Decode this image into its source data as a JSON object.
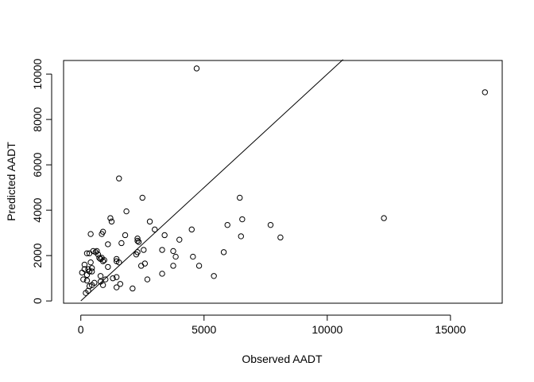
{
  "chart_data": {
    "type": "scatter",
    "title": "",
    "xlabel": "Observed AADT",
    "ylabel": "Predicted AADT",
    "xlim": [
      -700,
      17100
    ],
    "ylim": [
      -100,
      10600
    ],
    "x_ticks": [
      0,
      5000,
      10000,
      15000
    ],
    "y_ticks": [
      0,
      2000,
      4000,
      6000,
      8000,
      10000
    ],
    "x_tick_labels": [
      "0",
      "5000",
      "10000",
      "15000"
    ],
    "y_tick_labels": [
      "0",
      "2000",
      "4000",
      "6000",
      "8000",
      "10000"
    ],
    "grid": false,
    "legend": "none",
    "marker": "open-circle",
    "reference_line": {
      "type": "y=x",
      "from": [
        0,
        0
      ],
      "to": [
        10640,
        10640
      ]
    },
    "points": [
      [
        4700,
        10250
      ],
      [
        16400,
        9200
      ],
      [
        1550,
        5400
      ],
      [
        2500,
        4550
      ],
      [
        6450,
        4550
      ],
      [
        1850,
        3950
      ],
      [
        6550,
        3600
      ],
      [
        12300,
        3650
      ],
      [
        1200,
        3650
      ],
      [
        1250,
        3500
      ],
      [
        2800,
        3500
      ],
      [
        5950,
        3350
      ],
      [
        7700,
        3350
      ],
      [
        3000,
        3150
      ],
      [
        4500,
        3150
      ],
      [
        900,
        3050
      ],
      [
        850,
        2950
      ],
      [
        400,
        2950
      ],
      [
        1800,
        2900
      ],
      [
        3400,
        2900
      ],
      [
        6500,
        2850
      ],
      [
        8100,
        2800
      ],
      [
        2300,
        2750
      ],
      [
        4000,
        2700
      ],
      [
        2300,
        2650
      ],
      [
        2350,
        2600
      ],
      [
        1650,
        2550
      ],
      [
        1100,
        2500
      ],
      [
        2550,
        2250
      ],
      [
        3300,
        2250
      ],
      [
        3750,
        2200
      ],
      [
        500,
        2200
      ],
      [
        650,
        2200
      ],
      [
        600,
        2150
      ],
      [
        2300,
        2150
      ],
      [
        5800,
        2150
      ],
      [
        250,
        2100
      ],
      [
        350,
        2100
      ],
      [
        700,
        2050
      ],
      [
        2250,
        2050
      ],
      [
        3850,
        1950
      ],
      [
        4550,
        1950
      ],
      [
        750,
        1900
      ],
      [
        850,
        1900
      ],
      [
        1450,
        1850
      ],
      [
        800,
        1850
      ],
      [
        950,
        1800
      ],
      [
        900,
        1750
      ],
      [
        1450,
        1750
      ],
      [
        1550,
        1700
      ],
      [
        400,
        1700
      ],
      [
        2600,
        1650
      ],
      [
        150,
        1600
      ],
      [
        2450,
        1550
      ],
      [
        3750,
        1550
      ],
      [
        4800,
        1550
      ],
      [
        450,
        1450
      ],
      [
        150,
        1400
      ],
      [
        300,
        1400
      ],
      [
        1100,
        1500
      ],
      [
        50,
        1250
      ],
      [
        350,
        1300
      ],
      [
        450,
        1300
      ],
      [
        250,
        1150
      ],
      [
        3300,
        1200
      ],
      [
        5400,
        1100
      ],
      [
        800,
        1100
      ],
      [
        1450,
        1050
      ],
      [
        100,
        950
      ],
      [
        2700,
        950
      ],
      [
        1000,
        950
      ],
      [
        1300,
        1000
      ],
      [
        250,
        900
      ],
      [
        800,
        850
      ],
      [
        550,
        800
      ],
      [
        1600,
        750
      ],
      [
        450,
        700
      ],
      [
        900,
        700
      ],
      [
        350,
        650
      ],
      [
        1450,
        600
      ],
      [
        2100,
        550
      ],
      [
        300,
        450
      ],
      [
        200,
        350
      ]
    ]
  }
}
